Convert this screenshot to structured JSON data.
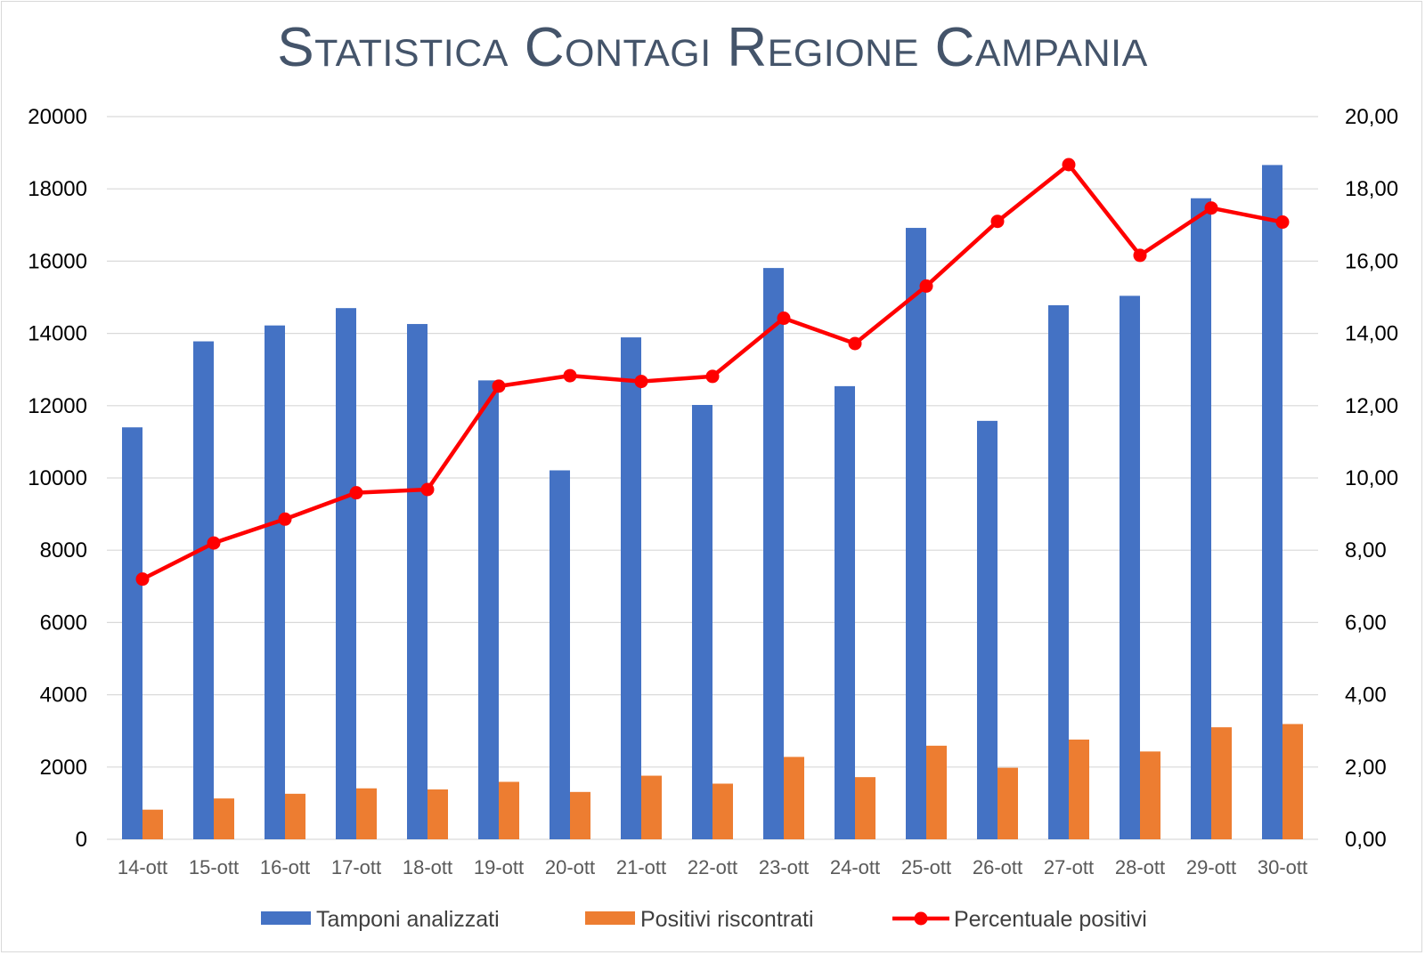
{
  "chart_data": {
    "type": "bar",
    "title": "Statistica Contagi Regione Campania",
    "categories": [
      "14-ott",
      "15-ott",
      "16-ott",
      "17-ott",
      "18-ott",
      "19-ott",
      "20-ott",
      "21-ott",
      "22-ott",
      "23-ott",
      "24-ott",
      "25-ott",
      "26-ott",
      "27-ott",
      "28-ott",
      "29-ott",
      "30-ott"
    ],
    "series": [
      {
        "name": "Tamponi analizzati",
        "type": "bar",
        "axis": "left",
        "color": "#4472c4",
        "values": [
          11400,
          13780,
          14220,
          14700,
          14260,
          12700,
          10210,
          13890,
          12020,
          15810,
          12540,
          16920,
          11580,
          14780,
          15040,
          17740,
          18660
        ]
      },
      {
        "name": "Positivi riscontrati",
        "type": "bar",
        "axis": "left",
        "color": "#ed7d31",
        "values": [
          820,
          1130,
          1260,
          1410,
          1380,
          1590,
          1310,
          1760,
          1540,
          2280,
          1720,
          2590,
          1980,
          2760,
          2430,
          3100,
          3190
        ]
      },
      {
        "name": "Percentuale positivi",
        "type": "line",
        "axis": "right",
        "color": "#ff0000",
        "values": [
          7.2,
          8.2,
          8.86,
          9.59,
          9.68,
          12.54,
          12.83,
          12.67,
          12.81,
          14.42,
          13.72,
          15.31,
          17.1,
          18.67,
          16.16,
          17.47,
          17.08
        ]
      }
    ],
    "y_left": {
      "min": 0,
      "max": 20000,
      "step": 2000,
      "tick_labels": [
        "0",
        "2000",
        "4000",
        "6000",
        "8000",
        "10000",
        "12000",
        "14000",
        "16000",
        "18000",
        "20000"
      ]
    },
    "y_right": {
      "min": 0,
      "max": 20,
      "step": 2,
      "tick_labels": [
        "0,00",
        "2,00",
        "4,00",
        "6,00",
        "8,00",
        "10,00",
        "12,00",
        "14,00",
        "16,00",
        "18,00",
        "20,00"
      ]
    },
    "grid": true,
    "legend_position": "bottom"
  }
}
